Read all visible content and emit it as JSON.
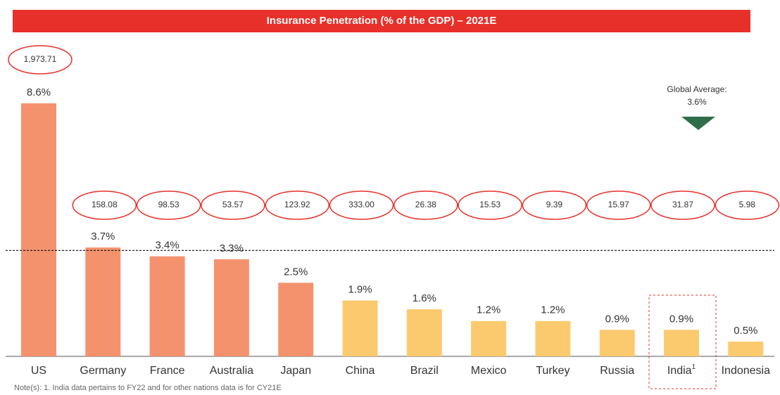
{
  "chart_data": {
    "type": "bar",
    "title": "Insurance Penetration (% of the GDP) – 2021E",
    "categories": [
      "US",
      "Germany",
      "France",
      "Australia",
      "Japan",
      "China",
      "Brazil",
      "Mexico",
      "Turkey",
      "Russia",
      "India",
      "Indonesia"
    ],
    "superscripts": [
      null,
      null,
      null,
      null,
      null,
      null,
      null,
      null,
      null,
      null,
      "1",
      null
    ],
    "values": [
      8.6,
      3.7,
      3.4,
      3.3,
      2.5,
      1.9,
      1.6,
      1.2,
      1.2,
      0.9,
      0.9,
      0.5
    ],
    "value_labels": [
      "8.6%",
      "3.7%",
      "3.4%",
      "3.3%",
      "2.5%",
      "1.9%",
      "1.6%",
      "1.2%",
      "1.2%",
      "0.9%",
      "0.9%",
      "0.5%"
    ],
    "colors": [
      "#f5926e",
      "#f5926e",
      "#f5926e",
      "#f5926e",
      "#f5926e",
      "#fcca6e",
      "#fcca6e",
      "#fcca6e",
      "#fcca6e",
      "#fcca6e",
      "#fcca6e",
      "#fcca6e"
    ],
    "circled_labels": [
      "1,973.71",
      "158.08",
      "98.53",
      "53.57",
      "123.92",
      "333.00",
      "26.38",
      "15.53",
      "9.39",
      "15.97",
      "31.87",
      "5.98"
    ],
    "reference_line": {
      "value": 3.6,
      "label": "Global Average:",
      "value_label": "3.6%"
    },
    "note": "Note(s): 1. India data pertains to FY22 and for other nations data is for CY21E"
  }
}
